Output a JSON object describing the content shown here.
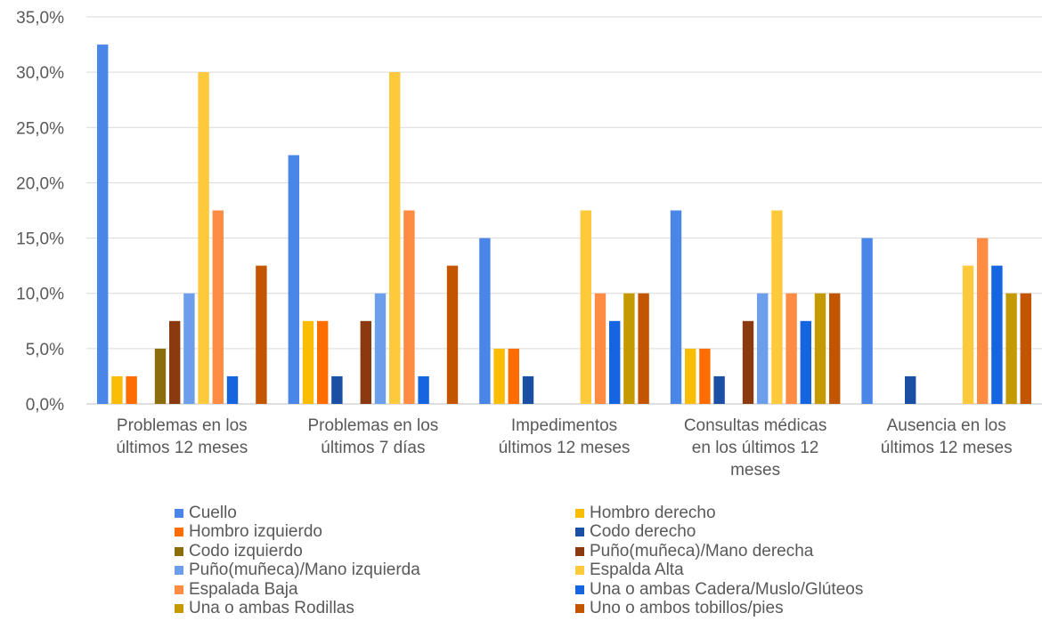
{
  "chart_data": {
    "type": "bar",
    "title": "",
    "xlabel": "",
    "ylabel": "",
    "ylim": [
      0,
      35
    ],
    "y_tick_labels": [
      "0,0%",
      "5,0%",
      "10,0%",
      "15,0%",
      "20,0%",
      "25,0%",
      "30,0%",
      "35,0%"
    ],
    "grid": true,
    "legend_position": "bottom",
    "categories": [
      [
        "Problemas en los",
        "últimos 12 meses"
      ],
      [
        "Problemas en los",
        "últimos 7 días"
      ],
      [
        "Impedimentos",
        "últimos 12 meses"
      ],
      [
        "Consultas médicas",
        "en los últimos 12",
        "meses"
      ],
      [
        "Ausencia en los",
        "últimos 12 meses"
      ]
    ],
    "series": [
      {
        "name": "Cuello",
        "color": "#4a86e8",
        "values": [
          32.5,
          22.5,
          15.0,
          17.5,
          15.0
        ]
      },
      {
        "name": "Hombro derecho",
        "color": "#fbbc04",
        "values": [
          2.5,
          7.5,
          5.0,
          5.0,
          0
        ]
      },
      {
        "name": "Hombro izquierdo",
        "color": "#ff6d01",
        "values": [
          2.5,
          7.5,
          5.0,
          5.0,
          0
        ]
      },
      {
        "name": "Codo derecho",
        "color": "#1a4fa3",
        "values": [
          0,
          2.5,
          2.5,
          2.5,
          2.5
        ]
      },
      {
        "name": "Codo izquierdo",
        "color": "#8c6d0c",
        "values": [
          5.0,
          0,
          0,
          0,
          0
        ]
      },
      {
        "name": "Puño(muñeca)/Mano derecha",
        "color": "#8b3a0f",
        "values": [
          7.5,
          7.5,
          0,
          7.5,
          0
        ]
      },
      {
        "name": "Puño(muñeca)/Mano izquierda",
        "color": "#6d9eeb",
        "values": [
          10.0,
          10.0,
          0,
          10.0,
          0
        ]
      },
      {
        "name": "Espalda Alta",
        "color": "#ffc93c",
        "values": [
          30.0,
          30.0,
          17.5,
          17.5,
          12.5
        ]
      },
      {
        "name": "Espalada Baja",
        "color": "#ff8c42",
        "values": [
          17.5,
          17.5,
          10.0,
          10.0,
          15.0
        ]
      },
      {
        "name": "Una o ambas Cadera/Muslo/Glúteos",
        "color": "#1565e0",
        "values": [
          2.5,
          2.5,
          7.5,
          7.5,
          12.5
        ]
      },
      {
        "name": "Una o ambas Rodillas",
        "color": "#c49a00",
        "values": [
          0,
          0,
          10.0,
          10.0,
          10.0
        ]
      },
      {
        "name": "Uno o ambos tobillos/pies",
        "color": "#c45500",
        "values": [
          12.5,
          12.5,
          10.0,
          10.0,
          10.0
        ]
      }
    ]
  }
}
